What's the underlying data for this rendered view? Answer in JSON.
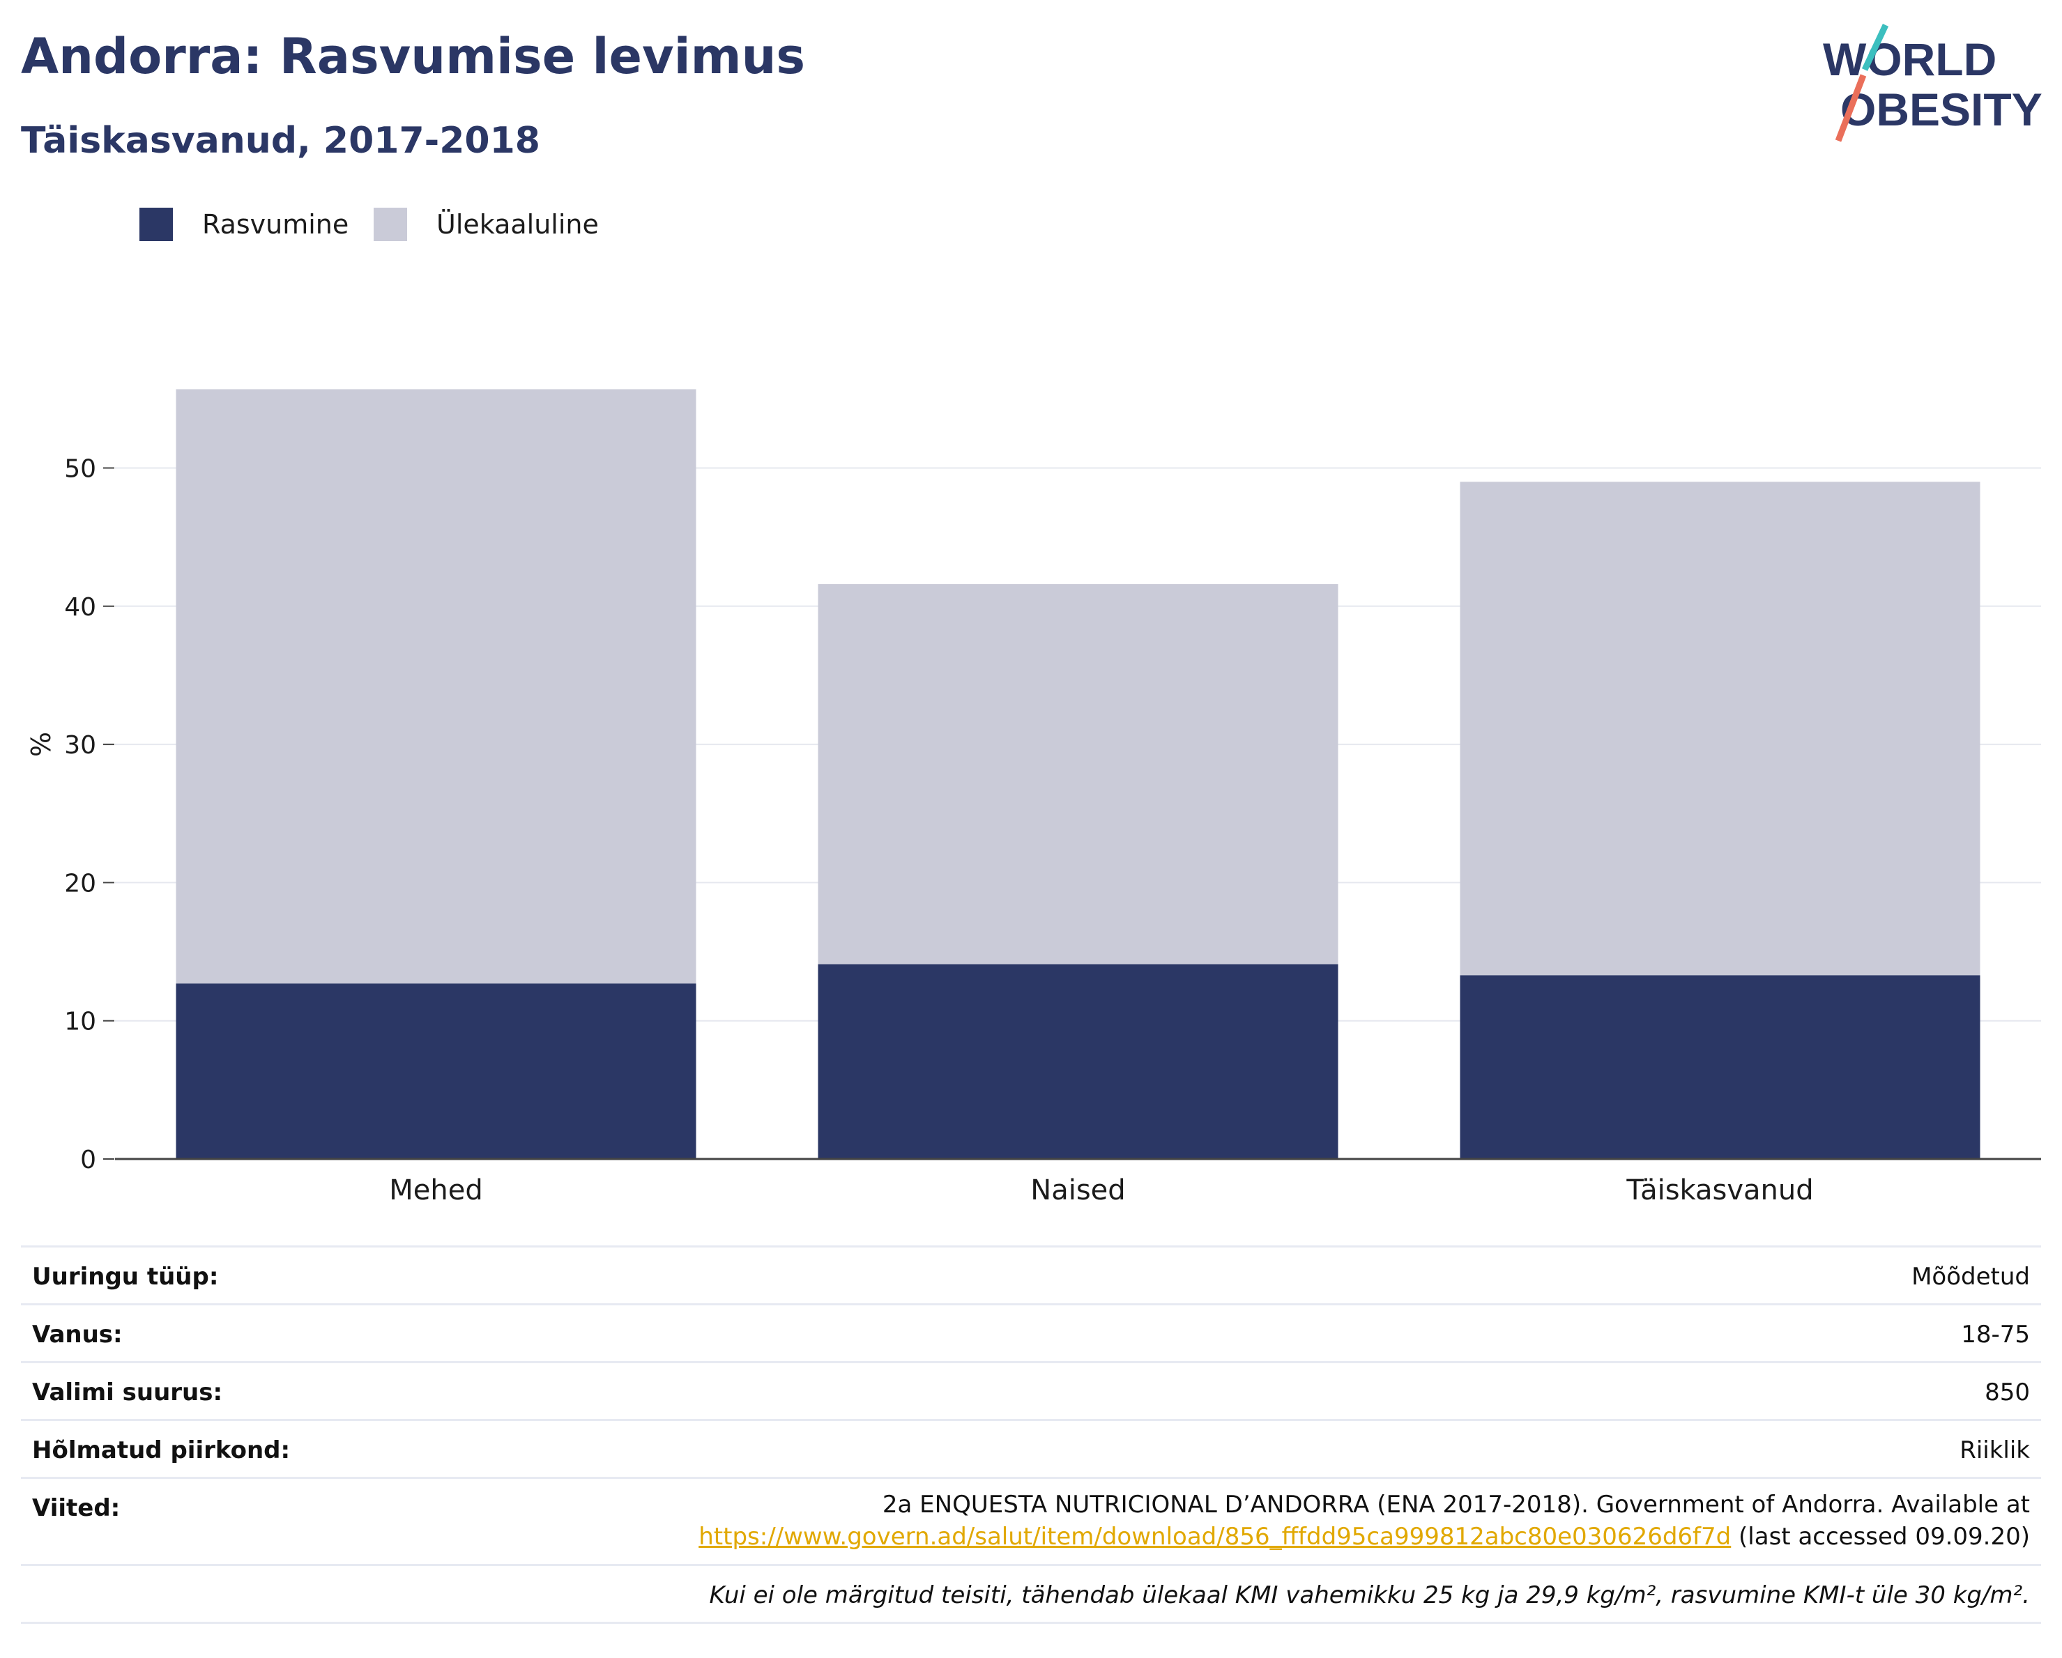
{
  "header": {
    "title": "Andorra: Rasvumise levimus",
    "subtitle": "Täiskasvanud, 2017-2018"
  },
  "logo": {
    "line1": "WORLD",
    "line2": "OBESITY"
  },
  "legend": [
    {
      "label": "Rasvumine",
      "color": "#2b3765"
    },
    {
      "label": "Ülekaaluline",
      "color": "#cacbd8"
    }
  ],
  "chart_data": {
    "type": "bar",
    "stacked": true,
    "categories": [
      "Mehed",
      "Naised",
      "Täiskasvanud"
    ],
    "series": [
      {
        "name": "Rasvumine",
        "color": "#2b3765",
        "values": [
          12.7,
          14.1,
          13.3
        ]
      },
      {
        "name": "Ülekaaluline",
        "color": "#cacbd8",
        "values": [
          43.0,
          27.5,
          35.7
        ]
      }
    ],
    "ylabel": "%",
    "ylim": [
      0,
      58
    ],
    "yticks": [
      0,
      10,
      20,
      30,
      40,
      50
    ],
    "grid": true,
    "legend_position": "top-left"
  },
  "meta": {
    "rows": [
      {
        "key": "Uuringu tüüp:",
        "value": "Mõõdetud"
      },
      {
        "key": "Vanus:",
        "value": "18-75"
      },
      {
        "key": "Valimi suurus:",
        "value": "850"
      },
      {
        "key": "Hõlmatud piirkond:",
        "value": "Riiklik"
      }
    ],
    "references": {
      "key": "Viited:",
      "line1": "2a ENQUESTA NUTRICIONAL D’ANDORRA (ENA 2017-2018). Government of Andorra. Available at",
      "link": "https://www.govern.ad/salut/item/download/856_fffdd95ca999812abc80e030626d6f7d",
      "suffix": " (last accessed 09.09.20)"
    },
    "note": "Kui ei ole märgitud teisiti, tähendab ülekaal KMI vahemikku 25 kg ja 29,9 kg/m², rasvumine KMI-t üle 30 kg/m²."
  }
}
